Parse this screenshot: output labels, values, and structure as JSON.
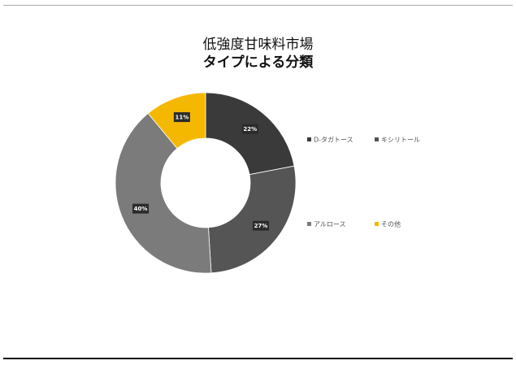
{
  "title": "低強度甘味料市場",
  "subtitle": "タイプによる分類",
  "chart_data": {
    "type": "pie",
    "donut": true,
    "title": "低強度甘味料市場",
    "subtitle": "タイプによる分類",
    "categories": [
      "D-タガトース",
      "キシリトール",
      "アルロース",
      "その他"
    ],
    "values": [
      22,
      27,
      40,
      11
    ],
    "labels": [
      "22%",
      "27%",
      "40%",
      "11%"
    ],
    "colors": [
      "#3a3a3a",
      "#555555",
      "#7b7b7b",
      "#f5b800"
    ],
    "legend_position": "right"
  }
}
